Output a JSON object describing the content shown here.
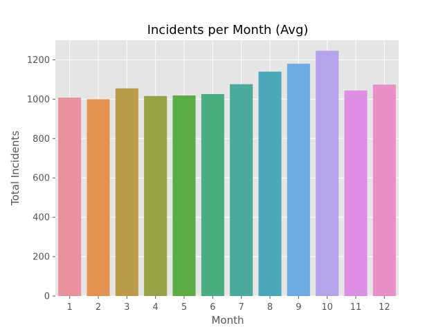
{
  "chart_data": {
    "type": "bar",
    "title": "Incidents per Month (Avg)",
    "xlabel": "Month",
    "ylabel": "Total Incidents",
    "categories": [
      "1",
      "2",
      "3",
      "4",
      "5",
      "6",
      "7",
      "8",
      "9",
      "10",
      "11",
      "12"
    ],
    "values": [
      1008,
      1000,
      1055,
      1016,
      1019,
      1026,
      1076,
      1140,
      1180,
      1246,
      1044,
      1074
    ],
    "ylim": [
      0,
      1300
    ],
    "yticks": [
      "0",
      "200",
      "400",
      "600",
      "800",
      "1000",
      "1200"
    ],
    "grid": true,
    "style": "ggplot",
    "plot_background": "#e5e5e5",
    "colors": [
      "#e8919c",
      "#e3924f",
      "#ba9c48",
      "#99a245",
      "#59ac46",
      "#49ae7f",
      "#4aaa9c",
      "#4aa8b8",
      "#6cace2",
      "#b5a3ec",
      "#df8ee6",
      "#e88fc5"
    ]
  }
}
